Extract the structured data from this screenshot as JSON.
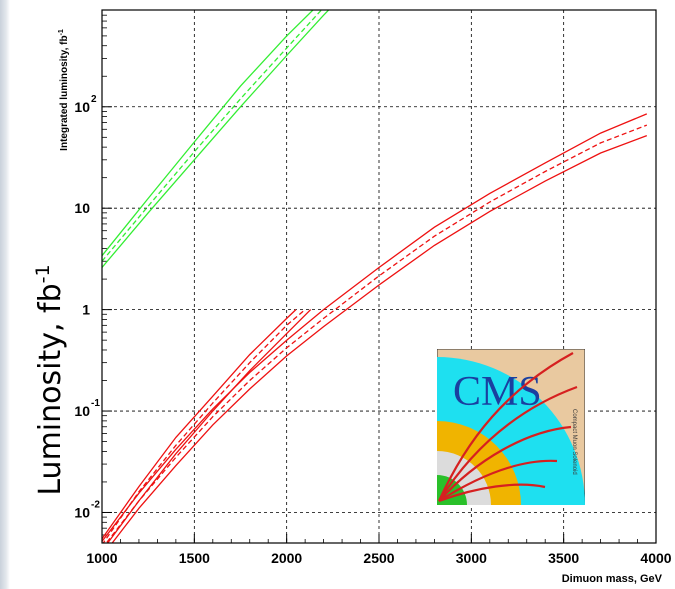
{
  "chart_data": {
    "type": "line",
    "title": "",
    "xlabel": "Dimuon mass, GeV",
    "ylabel": "Integrated luminosity, fb",
    "ylabel_sup": "-1",
    "ylabel_overlay": "Luminosity, fb",
    "ylabel_overlay_sup": "-1",
    "xlim": [
      1000,
      4000
    ],
    "ylim": [
      0.005,
      900
    ],
    "yscale": "log",
    "grid": true,
    "x_ticks": [
      "1000",
      "1500",
      "2000",
      "2500",
      "3000",
      "3500",
      "4000"
    ],
    "y_ticks": [
      {
        "value": 0.01,
        "base": "10",
        "exp": "-2"
      },
      {
        "value": 0.1,
        "base": "10",
        "exp": "-1"
      },
      {
        "value": 1,
        "base": "1",
        "exp": ""
      },
      {
        "value": 10,
        "base": "10",
        "exp": ""
      },
      {
        "value": 100,
        "base": "10",
        "exp": "2"
      }
    ],
    "colors": {
      "green": "#33ee33",
      "red": "#ee1111",
      "grid": "#000000"
    },
    "series": [
      {
        "color": "green",
        "style": "solid",
        "x": [
          1000,
          1250,
          1500,
          1750,
          2000,
          2250,
          2320
        ],
        "values": [
          3.4,
          12.5,
          45,
          160,
          500,
          1400,
          1600
        ]
      },
      {
        "color": "green",
        "style": "dashed",
        "x": [
          1000,
          1250,
          1500,
          1750,
          2000,
          2200,
          2330
        ],
        "values": [
          3.0,
          10.5,
          36,
          120,
          380,
          950,
          1600
        ]
      },
      {
        "color": "green",
        "style": "solid",
        "x": [
          1000,
          1250,
          1500,
          1750,
          2000,
          2200,
          2360
        ],
        "values": [
          2.6,
          9.0,
          30,
          100,
          320,
          800,
          1600
        ]
      },
      {
        "color": "red",
        "style": "solid",
        "x": [
          1000,
          1200,
          1400,
          1600,
          1800,
          2000,
          2200,
          2500,
          2800,
          3100,
          3400,
          3700,
          3950
        ],
        "values": [
          0.0052,
          0.0155,
          0.042,
          0.105,
          0.24,
          0.5,
          1.0,
          2.6,
          6.5,
          14,
          28,
          55,
          85
        ]
      },
      {
        "color": "red",
        "style": "dashed",
        "x": [
          1000,
          1200,
          1400,
          1600,
          1800,
          2000,
          2200,
          2500,
          2800,
          3100,
          3400,
          3700,
          3950
        ],
        "values": [
          0.0044,
          0.013,
          0.035,
          0.088,
          0.2,
          0.42,
          0.82,
          2.15,
          5.3,
          11.5,
          23,
          44,
          66
        ]
      },
      {
        "color": "red",
        "style": "solid",
        "x": [
          1000,
          1200,
          1400,
          1600,
          1800,
          2000,
          2200,
          2500,
          2800,
          3100,
          3400,
          3700,
          3950
        ],
        "values": [
          0.0037,
          0.011,
          0.029,
          0.073,
          0.165,
          0.35,
          0.68,
          1.75,
          4.3,
          9.3,
          18.5,
          35,
          52
        ]
      },
      {
        "color": "red",
        "style": "solid",
        "x": [
          1000,
          1200,
          1400,
          1600,
          1800,
          2000,
          2050
        ],
        "values": [
          0.0055,
          0.018,
          0.055,
          0.14,
          0.36,
          0.82,
          1.0
        ]
      },
      {
        "color": "red",
        "style": "dashed",
        "x": [
          1000,
          1200,
          1400,
          1600,
          1800,
          2000,
          2100
        ],
        "values": [
          0.0048,
          0.016,
          0.046,
          0.12,
          0.3,
          0.7,
          1.0
        ]
      },
      {
        "color": "red",
        "style": "solid",
        "x": [
          1000,
          1200,
          1400,
          1600,
          1800,
          2000,
          2130
        ],
        "values": [
          0.0042,
          0.013,
          0.038,
          0.1,
          0.25,
          0.58,
          1.0
        ]
      }
    ]
  },
  "logo": {
    "text": "CMS",
    "subtext": "Compact Muon Solenoid",
    "colors": {
      "cyan": "#1ee0f0",
      "orange": "#f0b400",
      "green": "#2ac02a",
      "gray": "#dcdcdc",
      "tan": "#e9c9a0",
      "track": "#d62020"
    }
  }
}
